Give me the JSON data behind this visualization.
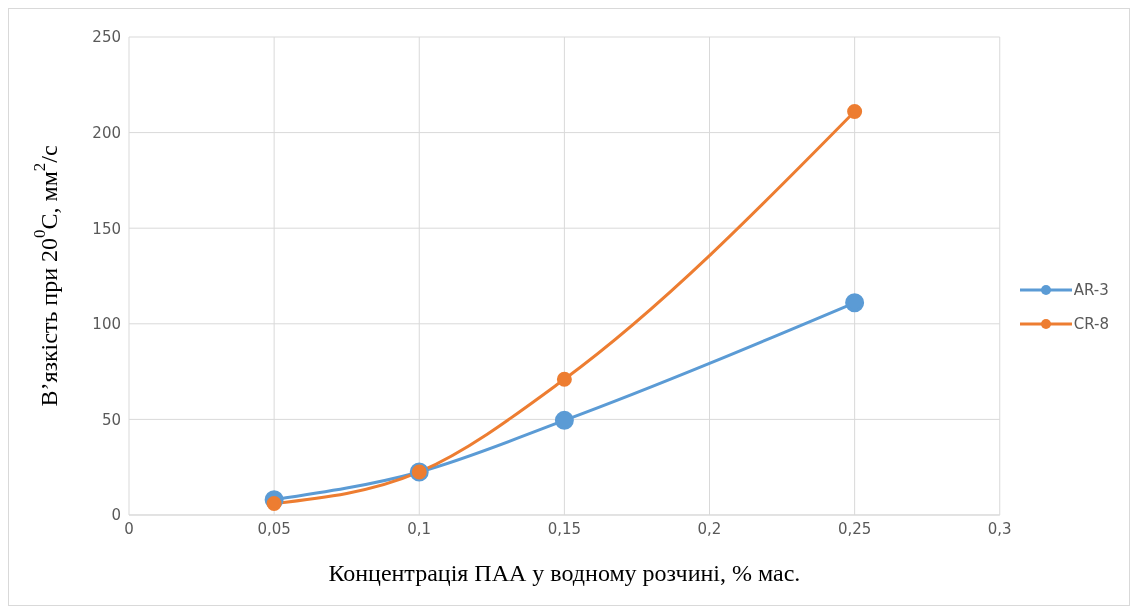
{
  "chart_data": {
    "type": "line",
    "xlabel": "Концентрація ПАА у водному розчині, % мас.",
    "ylabel": "В’язкість при 20$^{0}$С, мм$^{2}$/с",
    "x": [
      0.05,
      0.1,
      0.15,
      0.25
    ],
    "series": [
      {
        "name": "AR-3",
        "color": "#5b9bd5",
        "values": [
          8,
          22.5,
          49.5,
          111
        ]
      },
      {
        "name": "CR-8",
        "color": "#ed7d31",
        "values": [
          6,
          22.5,
          71,
          211
        ]
      }
    ],
    "xlim": [
      0,
      0.3
    ],
    "xticks": [
      0,
      {
        "value": 0.05,
        "label": "0,05"
      },
      {
        "value": 0.1,
        "label": "0,1"
      },
      {
        "value": 0.15,
        "label": "0,15"
      },
      {
        "value": 0.2,
        "label": "0,2"
      },
      {
        "value": 0.25,
        "label": "0,25"
      },
      {
        "value": 0.3,
        "label": "0,3"
      }
    ],
    "ylim": [
      0,
      250
    ],
    "yticks": [
      0,
      50,
      100,
      150,
      200,
      250
    ],
    "grid": true,
    "legend": "right",
    "marker": "circle",
    "line_style": "solid"
  }
}
